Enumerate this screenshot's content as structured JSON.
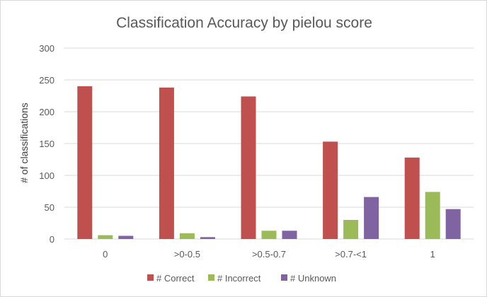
{
  "chart_data": {
    "type": "bar",
    "title": "Classification Accuracy by pielou score",
    "xlabel": "",
    "ylabel": "# of classifications",
    "categories": [
      "0",
      ">0-0.5",
      ">0.5-0.7",
      ">0.7-<1",
      "1"
    ],
    "series": [
      {
        "name": "# Correct",
        "color": "#c0504d",
        "values": [
          240,
          238,
          224,
          153,
          128
        ]
      },
      {
        "name": "# Incorrect",
        "color": "#9bbb59",
        "values": [
          6,
          9,
          13,
          30,
          74
        ]
      },
      {
        "name": "# Unknown",
        "color": "#8064a2",
        "values": [
          5,
          3,
          13,
          66,
          47
        ]
      }
    ],
    "ylim": [
      0,
      300
    ],
    "yticks": [
      "0",
      "50",
      "100",
      "150",
      "200",
      "250",
      "300"
    ],
    "grid": true,
    "legend_position": "bottom"
  }
}
